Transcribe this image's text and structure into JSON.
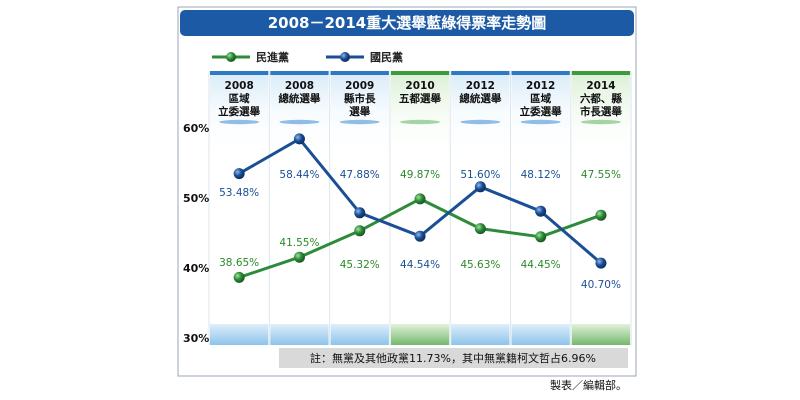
{
  "chart_data": {
    "type": "line",
    "title": "2008－2014重大選舉藍綠得票率走勢圖",
    "categories": [
      [
        "2008",
        "區域",
        "立委選舉"
      ],
      [
        "2008",
        "總統選舉"
      ],
      [
        "2009",
        "縣市長",
        "選舉"
      ],
      [
        "2010",
        "五都選舉"
      ],
      [
        "2012",
        "總統選舉"
      ],
      [
        "2012",
        "區域",
        "立委選舉"
      ],
      [
        "2014",
        "六都、縣",
        "市長選舉"
      ]
    ],
    "series": [
      {
        "name": "民進黨",
        "color": "#2e8b3a",
        "values": [
          38.65,
          41.55,
          45.32,
          49.87,
          45.63,
          44.45,
          47.55
        ],
        "labels": [
          "38.65%",
          "41.55%",
          "45.32%",
          "49.87%",
          "45.63%",
          "44.45%",
          "47.55%"
        ]
      },
      {
        "name": "國民黨",
        "color": "#1a4e95",
        "values": [
          53.48,
          58.44,
          47.88,
          44.54,
          51.6,
          48.12,
          40.7
        ],
        "labels": [
          "53.48%",
          "58.44%",
          "47.88%",
          "44.54%",
          "51.60%",
          "48.12%",
          "40.70%"
        ]
      }
    ],
    "yticks": [
      "60%",
      "50%",
      "40%",
      "30%"
    ],
    "ylim": [
      30,
      60
    ],
    "legend_position": "top-left",
    "note": "註：無黨及其他政黨11.73%，其中無黨籍柯文哲占6.96%",
    "highlight_columns": [
      3,
      6
    ]
  },
  "credit": "製表／編輯部。"
}
